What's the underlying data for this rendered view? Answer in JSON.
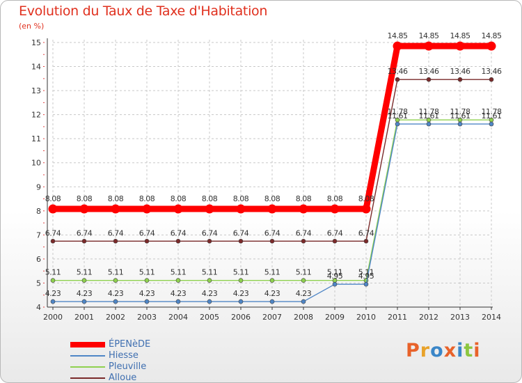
{
  "chart_data": {
    "type": "line",
    "title": "Evolution du Taux de Taxe d'Habitation",
    "ylabel": "(en %)",
    "xlabel": "",
    "x": [
      "2000",
      "2001",
      "2002",
      "2003",
      "2004",
      "2005",
      "2006",
      "2007",
      "2008",
      "2009",
      "2010",
      "2011",
      "2012",
      "2013",
      "2014"
    ],
    "ylim": [
      4,
      15
    ],
    "yticks": [
      "4",
      "5",
      "6",
      "7",
      "8",
      "9",
      "10",
      "11",
      "12",
      "13",
      "14",
      "15"
    ],
    "series": [
      {
        "name": "ÉPENèDE",
        "color": "#ff0000",
        "values": [
          8.08,
          8.08,
          8.08,
          8.08,
          8.08,
          8.08,
          8.08,
          8.08,
          8.08,
          8.08,
          8.08,
          14.85,
          14.85,
          14.85,
          14.85
        ],
        "labels": [
          "8.08",
          "8.08",
          "8.08",
          "8.08",
          "8.08",
          "8.08",
          "8.08",
          "8.08",
          "8.08",
          "8.08",
          "8.08",
          "14.85",
          "14.85",
          "14.85",
          "14.85"
        ]
      },
      {
        "name": "Hiesse",
        "color": "#4f86c6",
        "values": [
          4.23,
          4.23,
          4.23,
          4.23,
          4.23,
          4.23,
          4.23,
          4.23,
          4.23,
          4.95,
          4.95,
          11.61,
          11.61,
          11.61,
          11.61
        ],
        "labels": [
          "4.23",
          "4.23",
          "4.23",
          "4.23",
          "4.23",
          "4.23",
          "4.23",
          "4.23",
          "4.23",
          "4.95",
          "4.95",
          "11.61",
          "11.61",
          "11.61",
          "11.61"
        ]
      },
      {
        "name": "Pleuville",
        "color": "#8fd14f",
        "values": [
          5.11,
          5.11,
          5.11,
          5.11,
          5.11,
          5.11,
          5.11,
          5.11,
          5.11,
          5.11,
          5.11,
          11.78,
          11.78,
          11.78,
          11.78
        ],
        "labels": [
          "5.11",
          "5.11",
          "5.11",
          "5.11",
          "5.11",
          "5.11",
          "5.11",
          "5.11",
          "5.11",
          "5.11",
          "5.11",
          "11.78",
          "11.78",
          "11.78",
          "11.78"
        ]
      },
      {
        "name": "Alloue",
        "color": "#7a2a2a",
        "values": [
          6.74,
          6.74,
          6.74,
          6.74,
          6.74,
          6.74,
          6.74,
          6.74,
          6.74,
          6.74,
          6.74,
          13.46,
          13.46,
          13.46,
          13.46
        ],
        "labels": [
          "6.74",
          "6.74",
          "6.74",
          "6.74",
          "6.74",
          "6.74",
          "6.74",
          "6.74",
          "6.74",
          "6.74",
          "6.74",
          "13.46",
          "13.46",
          "13.46",
          "13.46"
        ]
      }
    ]
  },
  "logo": {
    "letters": [
      "P",
      "r",
      "o",
      "x",
      "i",
      "t",
      "i"
    ],
    "colors": [
      "#e8622a",
      "#e8a22a",
      "#3a86c8",
      "#e8622a",
      "#3a86c8",
      "#8cc63f",
      "#e8622a"
    ]
  }
}
